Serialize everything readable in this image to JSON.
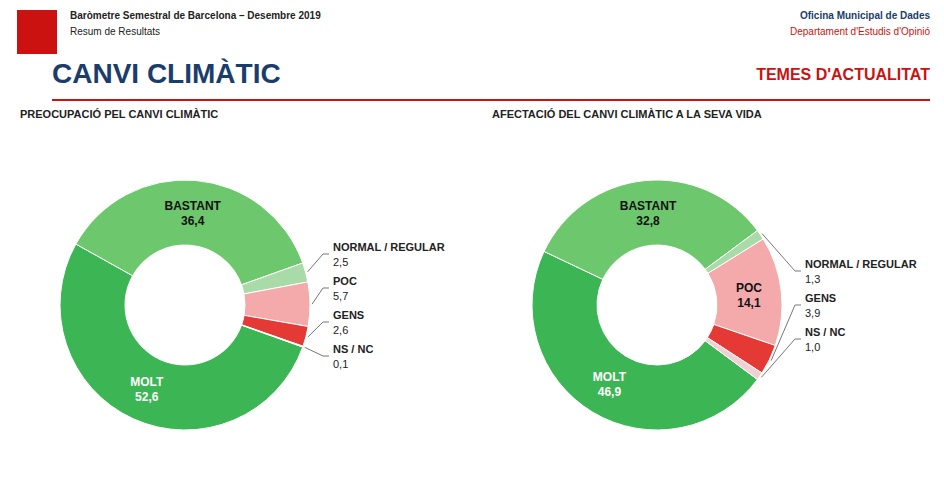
{
  "title": "CANVI CLIMÀTIC",
  "subtitle": "TEMES D'ACTUALITAT",
  "annotations": [
    "Baròmetre Semestral de Barcelona – Desembre 2019",
    "Resum de Resultats",
    "Oficina Municipal de Dades",
    "Departament d'Estudis d'Opinió"
  ],
  "chart_data": [
    {
      "type": "pie",
      "title": "PREOCUPACIÓ PEL CANVI CLIMÀTIC",
      "categories": [
        "MOLT",
        "BASTANT",
        "NORMAL / REGULAR",
        "POC",
        "GENS",
        "NS / NC"
      ],
      "values": [
        52.6,
        36.4,
        2.5,
        5.7,
        2.6,
        0.1
      ],
      "value_labels": [
        "52,6",
        "36,4",
        "2,5",
        "5,7",
        "2,6",
        "0,1"
      ],
      "colors": [
        "#3cb554",
        "#6dc76d",
        "#a8dba8",
        "#f4aaaa",
        "#e53935",
        "#f0d0d0"
      ],
      "data_labels": true
    },
    {
      "type": "pie",
      "title": "AFECTACIÓ DEL CANVI CLIMÀTIC A LA SEVA VIDA",
      "categories": [
        "MOLT",
        "BASTANT",
        "NORMAL / REGULAR",
        "POC",
        "GENS",
        "NS / NC"
      ],
      "values": [
        46.9,
        32.8,
        1.3,
        14.1,
        3.9,
        1.0
      ],
      "value_labels": [
        "46,9",
        "32,8",
        "1,3",
        "14,1",
        "3,9",
        "1,0"
      ],
      "colors": [
        "#3cb554",
        "#6dc76d",
        "#a8dba8",
        "#f4aaaa",
        "#e53935",
        "#f0d0d0"
      ],
      "data_labels": true
    }
  ]
}
